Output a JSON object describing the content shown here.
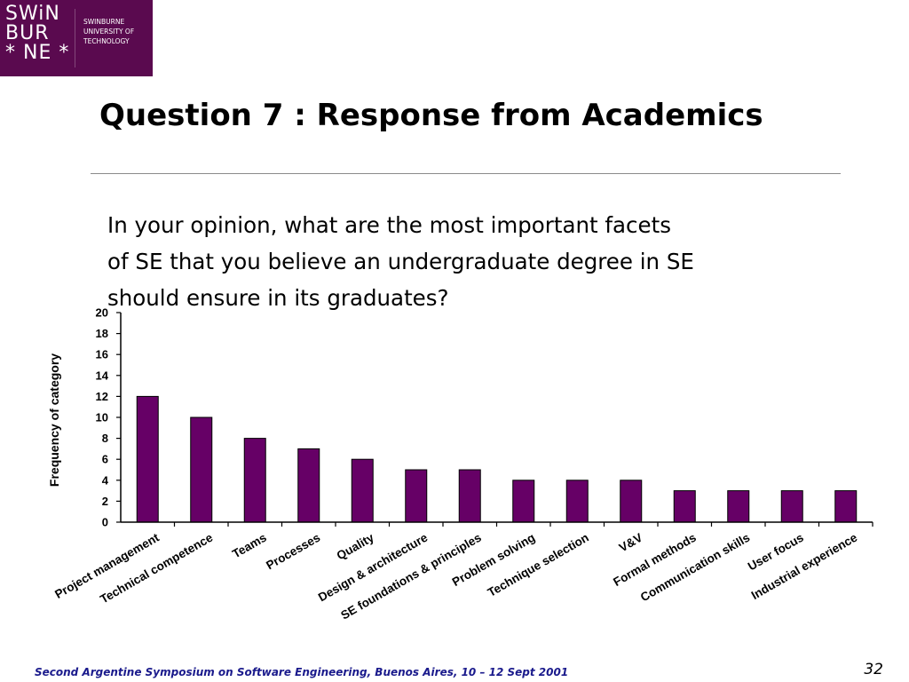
{
  "logo": {
    "mark_lines": [
      "SWiN",
      "BUR",
      "* NE *"
    ],
    "name_lines": [
      "SWINBURNE",
      "UNIVERSITY OF",
      "TECHNOLOGY"
    ],
    "background_color": "#5a0a4f"
  },
  "slide": {
    "title": "Question 7 : Response from Academics",
    "question_lines": [
      "In your opinion, what are the most important facets",
      "of SE that you believe an undergraduate degree in SE",
      "should ensure in its graduates?"
    ]
  },
  "chart_data": {
    "type": "bar",
    "categories": [
      "Project management",
      "Technical competence",
      "Teams",
      "Processes",
      "Quality",
      "Design & architecture",
      "SE foundations & principles",
      "Problem solving",
      "Technique selection",
      "V&V",
      "Formal methods",
      "Communication skills",
      "User focus",
      "Industrial experience"
    ],
    "values": [
      12,
      10,
      8,
      7,
      6,
      5,
      5,
      4,
      4,
      4,
      3,
      3,
      3,
      3
    ],
    "ylabel": "Frequency of category",
    "ylim": [
      0,
      20
    ],
    "yticks": [
      0,
      2,
      4,
      6,
      8,
      10,
      12,
      14,
      16,
      18,
      20
    ],
    "bar_color": "#660066",
    "grid": false,
    "legend": "none"
  },
  "footer": {
    "text": "Second Argentine Symposium on Software Engineering, Buenos Aires, 10 – 12 Sept 2001",
    "page_number": "32",
    "text_color": "#1a1a8c"
  }
}
